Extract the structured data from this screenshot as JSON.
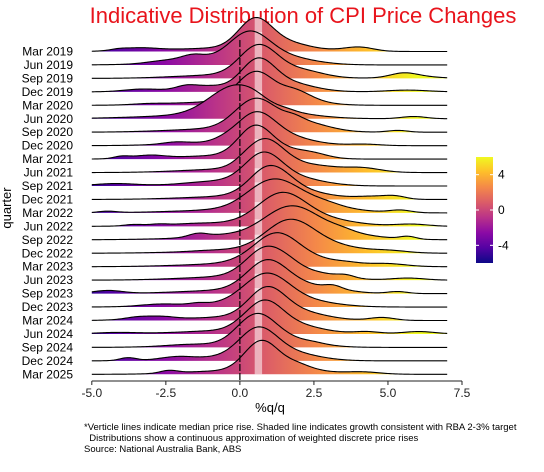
{
  "chart_data": {
    "type": "ridgeline",
    "title": "Indicative Distribution of CPI Price Changes",
    "xlabel": "%q/q",
    "ylabel": "quarter",
    "xlim": [
      -5.5,
      7.5
    ],
    "x_ticks": [
      -5.0,
      -2.5,
      0.0,
      2.5,
      5.0,
      7.5
    ],
    "x_tick_labels": [
      "-5.0",
      "-2.5",
      "0.0",
      "2.5",
      "5.0",
      "7.5"
    ],
    "reference_line_x": 0,
    "target_band": [
      0.5,
      0.75
    ],
    "quarters": [
      "Mar 2019",
      "Jun 2019",
      "Sep 2019",
      "Dec 2019",
      "Mar 2020",
      "Jun 2020",
      "Sep 2020",
      "Dec 2020",
      "Mar 2021",
      "Jun 2021",
      "Sep 2021",
      "Dec 2021",
      "Mar 2022",
      "Jun 2022",
      "Sep 2022",
      "Dec 2022",
      "Mar 2023",
      "Jun 2023",
      "Sep 2023",
      "Dec 2023",
      "Mar 2024",
      "Jun 2024",
      "Sep 2024",
      "Dec 2024",
      "Mar 2025"
    ],
    "median": [
      0.5,
      0.3,
      0.6,
      0.6,
      0.5,
      -0.2,
      0.5,
      0.5,
      0.5,
      0.8,
      0.8,
      1.0,
      1.2,
      1.4,
      1.7,
      1.7,
      1.2,
      0.9,
      0.9,
      0.8,
      0.9,
      0.8,
      0.6,
      0.6,
      0.7
    ],
    "spread": [
      1.0,
      1.2,
      1.1,
      1.0,
      1.1,
      1.5,
      1.2,
      1.1,
      1.0,
      1.1,
      1.1,
      1.2,
      1.5,
      1.4,
      1.6,
      1.5,
      1.3,
      1.2,
      1.2,
      1.3,
      1.1,
      1.1,
      1.1,
      1.1,
      1.0
    ],
    "color_scale": {
      "palette": "plasma",
      "range": [
        -6,
        6
      ],
      "ticks": [
        4,
        0,
        -4
      ],
      "tick_labels": [
        "4",
        "0",
        "-4"
      ],
      "stops": [
        "#0d0887",
        "#5402a3",
        "#8b0aa5",
        "#b93289",
        "#db5c68",
        "#f48849",
        "#febd2a",
        "#f0f921"
      ]
    },
    "legend_position": "right",
    "grid": false
  },
  "notes": {
    "line1": "*Verticle lines indicate median price rise. Shaded line indicates growth consistent with RBA 2-3% target",
    "line2": "  Distributions show a continuous approximation of weighted discrete price rises",
    "line3": "Source: National Australia Bank, ABS"
  }
}
